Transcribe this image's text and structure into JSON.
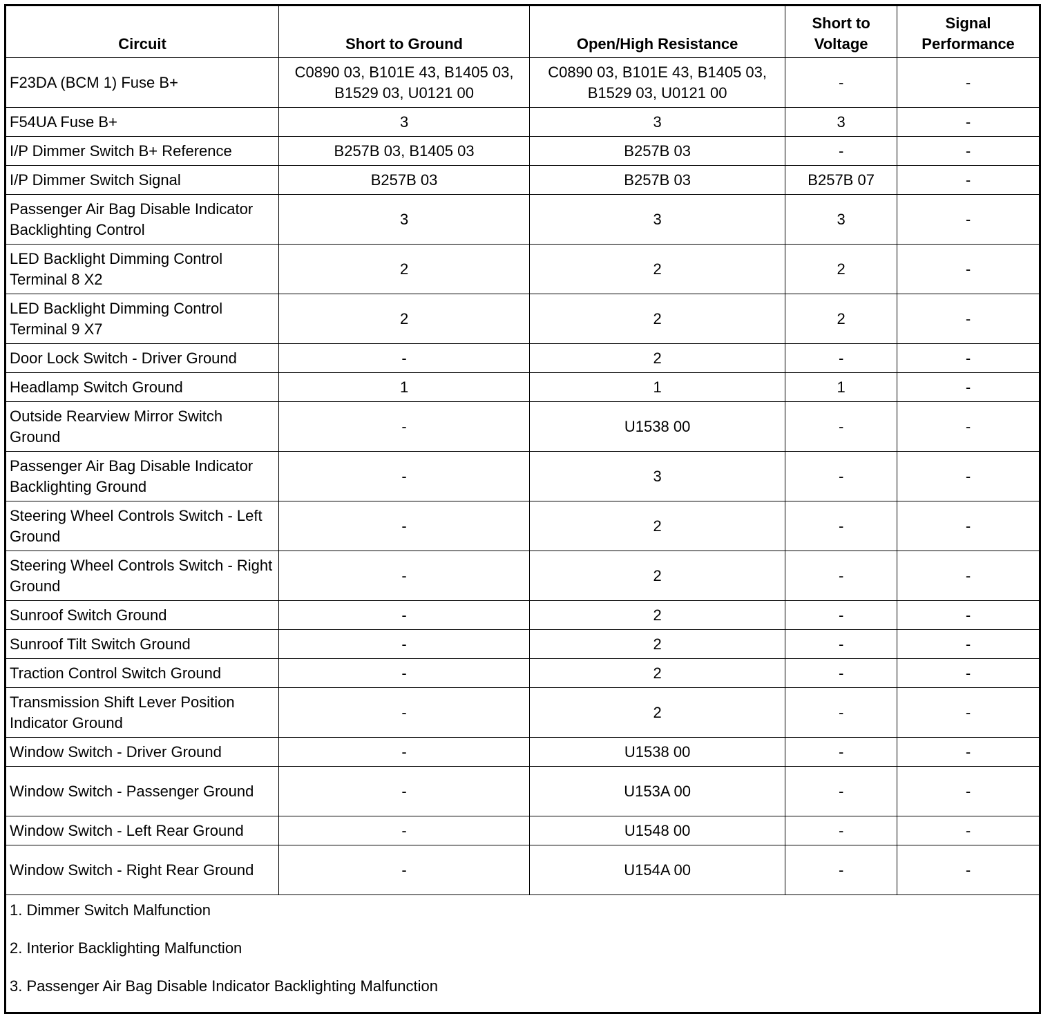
{
  "table": {
    "headers": [
      "Circuit",
      "Short to Ground",
      "Open/High Resistance",
      "Short to Voltage",
      "Signal Performance"
    ],
    "rows": [
      [
        "F23DA (BCM 1) Fuse B+",
        "C0890 03, B101E 43, B1405 03, B1529 03, U0121 00",
        "C0890 03, B101E 43, B1405 03, B1529 03, U0121 00",
        "-",
        "-"
      ],
      [
        "F54UA Fuse B+",
        "3",
        "3",
        "3",
        "-"
      ],
      [
        "I/P Dimmer Switch B+ Reference",
        "B257B 03, B1405 03",
        "B257B 03",
        "-",
        "-"
      ],
      [
        "I/P Dimmer Switch Signal",
        "B257B 03",
        "B257B 03",
        "B257B 07",
        "-"
      ],
      [
        "Passenger Air Bag Disable Indicator Backlighting Control",
        "3",
        "3",
        "3",
        "-"
      ],
      [
        "LED Backlight Dimming Control Terminal 8 X2",
        "2",
        "2",
        "2",
        "-"
      ],
      [
        "LED Backlight Dimming Control Terminal 9 X7",
        "2",
        "2",
        "2",
        "-"
      ],
      [
        "Door Lock Switch - Driver Ground",
        "-",
        "2",
        "-",
        "-"
      ],
      [
        "Headlamp Switch Ground",
        "1",
        "1",
        "1",
        "-"
      ],
      [
        "Outside Rearview Mirror Switch Ground",
        "-",
        "U1538 00",
        "-",
        "-"
      ],
      [
        "Passenger Air Bag Disable Indicator Backlighting Ground",
        "-",
        "3",
        "-",
        "-"
      ],
      [
        "Steering Wheel Controls Switch - Left Ground",
        "-",
        "2",
        "-",
        "-"
      ],
      [
        "Steering Wheel Controls Switch - Right Ground",
        "-",
        "2",
        "-",
        "-"
      ],
      [
        "Sunroof Switch Ground",
        "-",
        "2",
        "-",
        "-"
      ],
      [
        "Sunroof Tilt Switch Ground",
        "-",
        "2",
        "-",
        "-"
      ],
      [
        "Traction Control Switch Ground",
        "-",
        "2",
        "-",
        "-"
      ],
      [
        "Transmission Shift Lever Position Indicator Ground",
        "-",
        "2",
        "-",
        "-"
      ],
      [
        "Window Switch - Driver Ground",
        "-",
        "U1538 00",
        "-",
        "-"
      ],
      [
        "Window Switch - Passenger Ground",
        "-",
        "U153A 00",
        "-",
        "-"
      ],
      [
        "Window Switch - Left Rear Ground",
        "-",
        "U1548 00",
        "-",
        "-"
      ],
      [
        "Window Switch - Right Rear Ground",
        "-",
        "U154A 00",
        "-",
        "-"
      ]
    ],
    "two_line_rows": [
      0,
      4,
      5,
      6,
      9,
      10,
      11,
      12,
      16,
      18,
      20
    ],
    "notes": [
      "1. Dimmer Switch Malfunction",
      "2. Interior Backlighting Malfunction",
      "3. Passenger Air Bag Disable Indicator Backlighting Malfunction"
    ]
  }
}
